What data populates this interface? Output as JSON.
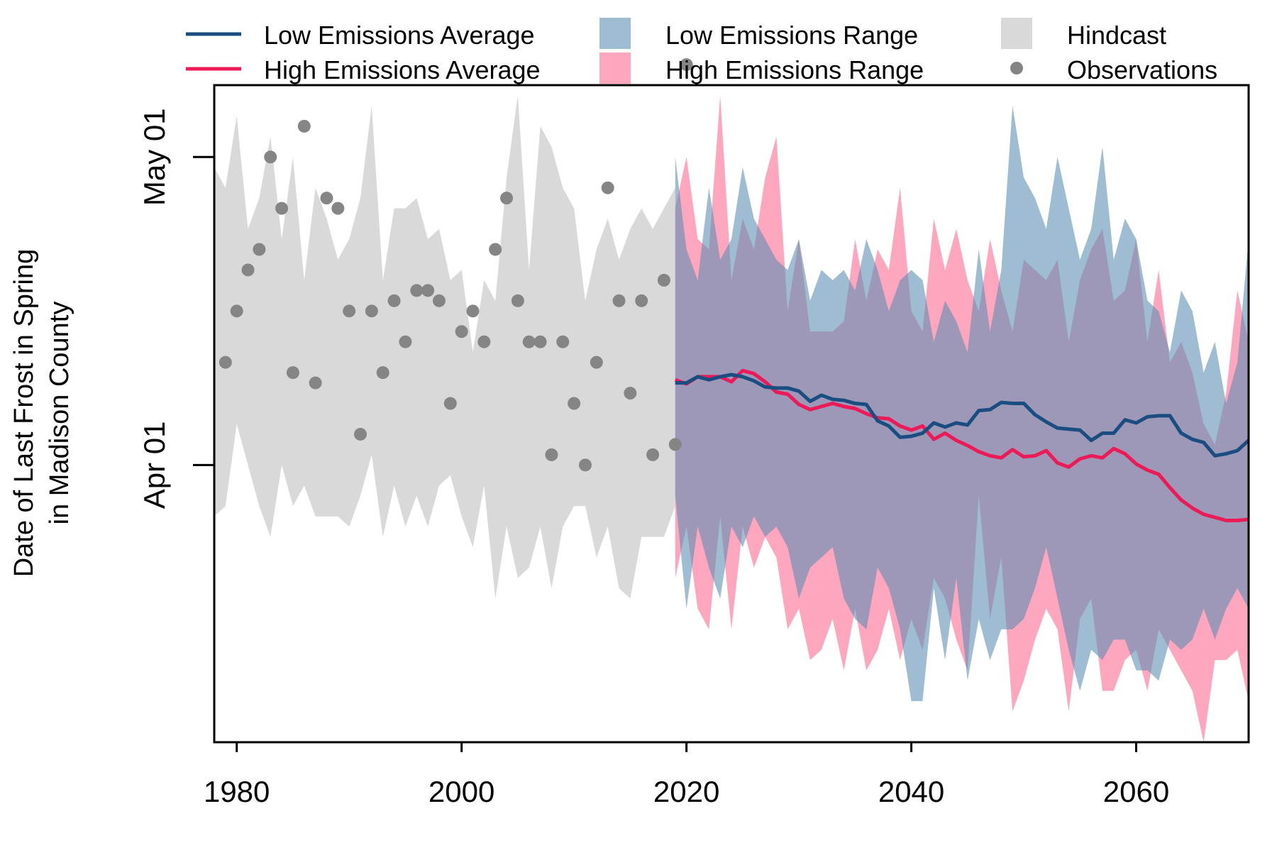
{
  "chart_data": {
    "type": "line",
    "title": "",
    "xlabel": "",
    "ylabel_line1": "Date of Last Frost in Spring",
    "ylabel_line2": "in Madison County",
    "xlim": [
      1978,
      2070
    ],
    "ylim": [
      64,
      128
    ],
    "x_ticks": [
      1980,
      2000,
      2020,
      2040,
      2060
    ],
    "y_ticks": [
      {
        "value": 91,
        "label": "Apr 01"
      },
      {
        "value": 121,
        "label": "May 01"
      }
    ],
    "legend_position": "top",
    "legend": {
      "low_avg": "Low Emissions Average",
      "high_avg": "High Emissions Average",
      "low_range": "Low Emissions Range",
      "high_range": "High Emissions Range",
      "hindcast": "Hindcast",
      "observations": "Observations"
    },
    "colors": {
      "low_line": "#1a4e80",
      "high_line": "#ec1a56",
      "low_fill": "#5e8fb4",
      "high_fill": "#ff6b94",
      "hindcast_fill": "#d9d9d9",
      "obs": "#858585"
    },
    "hindcast": {
      "x": [
        1978,
        1979,
        1980,
        1981,
        1982,
        1983,
        1984,
        1985,
        1986,
        1987,
        1988,
        1989,
        1990,
        1991,
        1992,
        1993,
        1994,
        1995,
        1996,
        1997,
        1998,
        1999,
        2000,
        2001,
        2002,
        2003,
        2004,
        2005,
        2006,
        2007,
        2008,
        2009,
        2010,
        2011,
        2012,
        2013,
        2014,
        2015,
        2016,
        2017,
        2018,
        2019
      ],
      "upper": [
        120,
        118,
        125,
        114,
        117,
        123,
        113,
        121,
        109,
        118,
        115,
        111,
        113,
        117,
        126,
        109,
        116,
        116,
        117,
        113,
        114,
        109,
        110,
        102,
        109,
        107,
        119,
        127,
        110,
        124,
        122,
        118,
        116,
        107,
        112,
        115,
        111,
        114,
        116,
        114,
        116,
        118
      ],
      "lower": [
        86,
        87,
        95,
        91,
        87,
        84,
        91,
        87,
        89,
        86,
        86,
        86,
        85,
        88,
        92,
        84,
        89,
        85,
        88,
        85,
        89,
        90,
        86,
        83,
        89,
        78,
        85,
        80,
        81,
        85,
        79,
        85,
        87,
        87,
        82,
        85,
        79,
        78,
        84,
        84,
        84,
        87
      ]
    },
    "observations": {
      "x": [
        1979,
        1980,
        1981,
        1982,
        1983,
        1984,
        1985,
        1986,
        1987,
        1988,
        1989,
        1990,
        1991,
        1992,
        1993,
        1994,
        1995,
        1996,
        1997,
        1998,
        1999,
        2000,
        2001,
        2002,
        2003,
        2004,
        2005,
        2006,
        2007,
        2008,
        2009,
        2010,
        2011,
        2012,
        2013,
        2014,
        2015,
        2016,
        2017,
        2018,
        2019,
        2020
      ],
      "y": [
        101,
        106,
        110,
        112,
        121,
        116,
        100,
        124,
        99,
        117,
        116,
        106,
        94,
        106,
        100,
        107,
        103,
        108,
        108,
        107,
        97,
        104,
        106,
        103,
        112,
        117,
        107,
        103,
        103,
        92,
        103,
        97,
        91,
        101,
        118,
        107,
        98,
        107,
        92,
        109,
        93,
        130
      ]
    },
    "low_range": {
      "x": [
        2019,
        2020,
        2021,
        2022,
        2023,
        2024,
        2025,
        2026,
        2027,
        2028,
        2029,
        2030,
        2031,
        2032,
        2033,
        2034,
        2035,
        2036,
        2037,
        2038,
        2039,
        2040,
        2041,
        2042,
        2043,
        2044,
        2045,
        2046,
        2047,
        2048,
        2049,
        2050,
        2051,
        2052,
        2053,
        2054,
        2055,
        2056,
        2057,
        2058,
        2059,
        2060,
        2061,
        2062,
        2063,
        2064,
        2065,
        2066,
        2067,
        2068,
        2069,
        2070
      ],
      "upper": [
        121,
        112,
        109,
        118,
        111,
        113,
        120,
        115,
        113,
        111,
        110,
        113,
        107,
        110,
        109,
        110,
        108,
        113,
        110,
        106,
        109,
        110,
        109,
        103,
        107,
        105,
        102,
        112,
        104,
        110,
        126,
        119,
        117,
        114,
        121,
        116,
        111,
        114,
        122,
        111,
        115,
        113,
        107,
        106,
        102,
        108,
        106,
        100,
        103,
        97,
        101,
        113
      ],
      "lower": [
        88,
        77,
        85,
        81,
        78,
        85,
        83,
        86,
        84,
        85,
        83,
        78,
        81,
        82,
        83,
        78,
        76,
        75,
        81,
        79,
        75,
        68,
        68,
        79,
        72,
        80,
        70,
        76,
        72,
        75,
        75,
        76,
        79,
        83,
        78,
        73,
        69,
        73,
        72,
        74,
        74,
        71,
        71,
        70,
        74,
        73,
        74,
        77,
        74,
        77,
        79,
        77
      ]
    },
    "high_range": {
      "x": [
        2019,
        2020,
        2021,
        2022,
        2023,
        2024,
        2025,
        2026,
        2027,
        2028,
        2029,
        2030,
        2031,
        2032,
        2033,
        2034,
        2035,
        2036,
        2037,
        2038,
        2039,
        2040,
        2041,
        2042,
        2043,
        2044,
        2045,
        2046,
        2047,
        2048,
        2049,
        2050,
        2051,
        2052,
        2053,
        2054,
        2055,
        2056,
        2057,
        2058,
        2059,
        2060,
        2061,
        2062,
        2063,
        2064,
        2065,
        2066,
        2067,
        2068,
        2069,
        2070
      ],
      "upper": [
        116,
        121,
        113,
        112,
        127,
        109,
        115,
        112,
        119,
        123,
        106,
        113,
        104,
        104,
        104,
        105,
        113,
        107,
        112,
        110,
        118,
        106,
        104,
        115,
        110,
        114,
        109,
        106,
        113,
        108,
        104,
        111,
        110,
        109,
        111,
        103,
        109,
        112,
        114,
        107,
        108,
        113,
        103,
        110,
        101,
        103,
        100,
        95,
        93,
        98,
        108,
        103
      ],
      "lower": [
        80,
        85,
        77,
        75,
        86,
        75,
        85,
        81,
        84,
        82,
        75,
        77,
        72,
        73,
        76,
        71,
        77,
        71,
        73,
        77,
        72,
        76,
        73,
        80,
        78,
        74,
        71,
        88,
        76,
        82,
        67,
        70,
        74,
        77,
        75,
        67,
        76,
        78,
        69,
        69,
        72,
        73,
        69,
        75,
        73,
        71,
        69,
        64,
        72,
        72,
        73,
        68
      ]
    },
    "low_avg": {
      "x": [
        2019,
        2020,
        2021,
        2022,
        2023,
        2024,
        2025,
        2026,
        2027,
        2028,
        2029,
        2030,
        2031,
        2032,
        2033,
        2034,
        2035,
        2036,
        2037,
        2038,
        2039,
        2040,
        2041,
        2042,
        2043,
        2044,
        2045,
        2046,
        2047,
        2048,
        2049,
        2050,
        2051,
        2052,
        2053,
        2054,
        2055,
        2056,
        2057,
        2058,
        2059,
        2060,
        2061,
        2062,
        2063,
        2064,
        2065,
        2066,
        2067,
        2068,
        2069,
        2070
      ],
      "values": [
        99,
        99,
        99.6,
        99.3,
        99.6,
        99.8,
        99.6,
        99.2,
        98.6,
        98.5,
        98.5,
        98.2,
        97.2,
        97.8,
        97.4,
        97.3,
        97,
        96.9,
        95.3,
        94.8,
        93.7,
        93.8,
        94.1,
        95.1,
        94.7,
        95.1,
        94.9,
        96.3,
        96.4,
        97.1,
        97,
        97,
        95.9,
        95.2,
        94.6,
        94.5,
        94.4,
        93.4,
        94.1,
        94.1,
        95.4,
        95.1,
        95.7,
        95.8,
        95.8,
        94.1,
        93.5,
        93.2,
        91.9,
        92.1,
        92.4,
        93.4
      ]
    },
    "high_avg": {
      "x": [
        2019,
        2020,
        2021,
        2022,
        2023,
        2024,
        2025,
        2026,
        2027,
        2028,
        2029,
        2030,
        2031,
        2032,
        2033,
        2034,
        2035,
        2036,
        2037,
        2038,
        2039,
        2040,
        2041,
        2042,
        2043,
        2044,
        2045,
        2046,
        2047,
        2048,
        2049,
        2050,
        2051,
        2052,
        2053,
        2054,
        2055,
        2056,
        2057,
        2058,
        2059,
        2060,
        2061,
        2062,
        2063,
        2064,
        2065,
        2066,
        2067,
        2068,
        2069,
        2070
      ],
      "values": [
        99.3,
        98.9,
        99.6,
        99.6,
        99.6,
        99.1,
        100.2,
        99.9,
        99.1,
        98.1,
        97.9,
        96.9,
        96.4,
        96.7,
        97,
        96.7,
        96.5,
        96,
        95.6,
        95.5,
        94.8,
        94.4,
        94.8,
        93.5,
        94.1,
        93.4,
        92.9,
        92.3,
        91.9,
        91.7,
        92.5,
        91.8,
        91.9,
        92.4,
        91.2,
        90.8,
        91.6,
        91.9,
        91.7,
        92.6,
        92.1,
        91.1,
        90.5,
        90.1,
        88.8,
        87.6,
        86.8,
        86.2,
        85.9,
        85.6,
        85.6,
        85.7
      ]
    }
  }
}
